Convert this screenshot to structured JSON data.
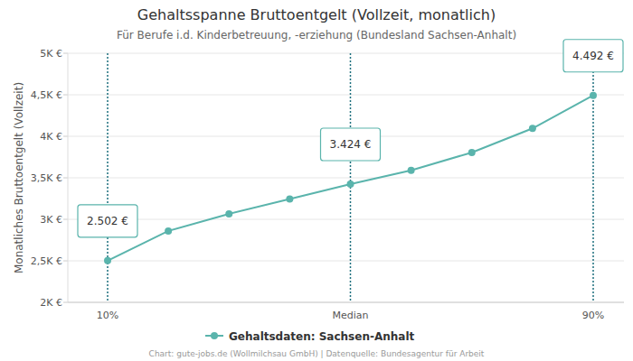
{
  "chart_data": {
    "type": "line",
    "title": "Gehaltsspanne Bruttoentgelt (Vollzeit, monatlich)",
    "subtitle": "Für Berufe i.d. Kinderbetreuung, -erziehung (Bundesland Sachsen-Anhalt)",
    "y_label": "Monatliches Bruttoentgelt (Vollzeit)",
    "source": "Chart: gute-jobs.de (Wollmilchsau GmbH) | Datenquelle: Bundesagentur für Arbeit",
    "categories": [
      "10%",
      null,
      null,
      null,
      "Median",
      null,
      null,
      null,
      "90%"
    ],
    "series": [
      {
        "name": "Gehaltsdaten: Sachsen-Anhalt",
        "color": "#5ab4ac",
        "marker": "circle",
        "values": [
          2502,
          2860,
          3065,
          3245,
          3424,
          3590,
          3805,
          4095,
          4492
        ],
        "value_labels": [
          "2.502 €",
          null,
          null,
          null,
          "3.424 €",
          null,
          null,
          null,
          "4.492 €"
        ]
      }
    ],
    "data_labels": true,
    "ylim": [
      2000,
      5000
    ],
    "yticks": [
      {
        "value": 2000,
        "label": "2K €"
      },
      {
        "value": 2500,
        "label": "2,5K €"
      },
      {
        "value": 3000,
        "label": "3K €"
      },
      {
        "value": 3500,
        "label": "3,5K €"
      },
      {
        "value": 4000,
        "label": "4K €"
      },
      {
        "value": 4500,
        "label": "4,5K €"
      },
      {
        "value": 5000,
        "label": "5K €"
      }
    ],
    "grid": true,
    "legend": "bottom"
  }
}
